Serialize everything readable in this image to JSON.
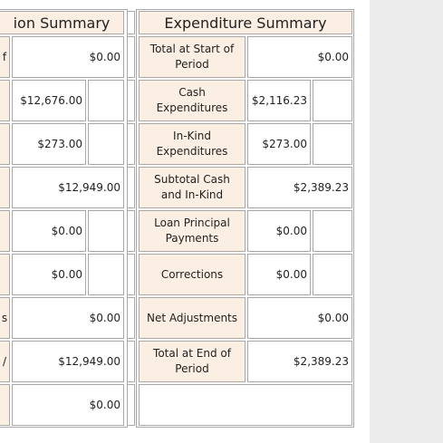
{
  "left_table": {
    "header": "ion Summary",
    "rows": [
      {
        "label": "f",
        "value": "$0.00"
      },
      {
        "value": "$12,676.00"
      },
      {
        "value": "$273.00"
      },
      {
        "value": "$12,949.00"
      },
      {
        "value": "$0.00"
      },
      {
        "value": "$0.00"
      },
      {
        "label": "s",
        "value": "$0.00"
      },
      {
        "label": "/",
        "value": "$12,949.00"
      },
      {
        "value": "$0.00"
      }
    ]
  },
  "right_table": {
    "header": "Expenditure Summary",
    "rows": [
      {
        "label": "Total at Start of Period",
        "value": "$0.00"
      },
      {
        "label": "Cash Expenditures",
        "value": "$2,116.23"
      },
      {
        "label": "In-Kind Expenditures",
        "value": "$273.00"
      },
      {
        "label": "Subtotal Cash and In-Kind",
        "value": "$2,389.23"
      },
      {
        "label": "Loan Principal Payments",
        "value": "$0.00"
      },
      {
        "label": "Corrections",
        "value": "$0.00"
      },
      {
        "label": "Net Adjustments",
        "value": "$0.00"
      },
      {
        "label": "Total at End of Period",
        "value": "$2,389.23"
      }
    ]
  }
}
